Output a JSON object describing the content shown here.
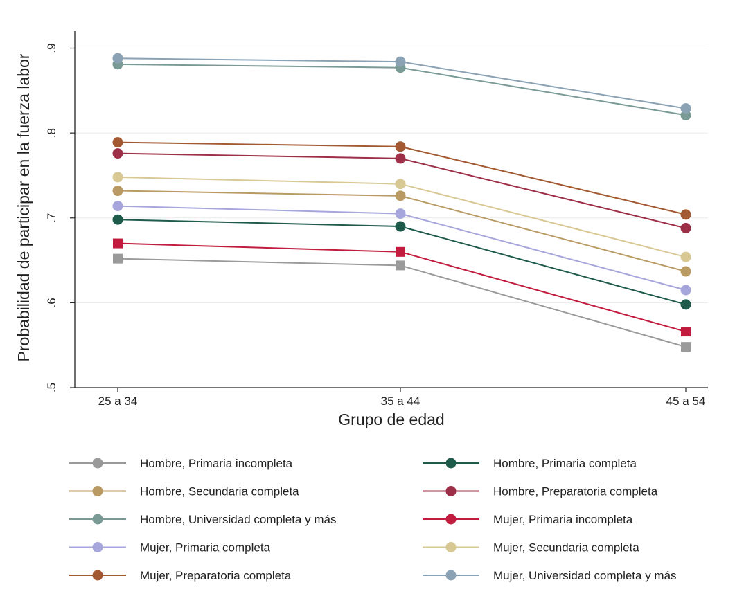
{
  "chart_data": {
    "type": "line",
    "title": "",
    "xlabel": "Grupo de edad",
    "ylabel": "Probabilidad de participar en la fuerza labor",
    "categories": [
      "25 a 34",
      "35 a 44",
      "45 a 54"
    ],
    "ylim": [
      0.5,
      0.92
    ],
    "yticks": [
      0.5,
      0.6,
      0.7,
      0.8,
      0.9
    ],
    "ytick_labels": [
      ".5",
      ".6",
      ".7",
      ".8",
      ".9"
    ],
    "grid": true,
    "legend_position": "bottom",
    "series": [
      {
        "name": "Hombre, Primaria incompleta",
        "values": [
          0.652,
          0.644,
          0.548
        ],
        "color": "#9a9a9a",
        "marker": "square"
      },
      {
        "name": "Hombre, Primaria completa",
        "values": [
          0.698,
          0.69,
          0.598
        ],
        "color": "#1f5b4b",
        "marker": "circle"
      },
      {
        "name": "Hombre, Secundaria completa",
        "values": [
          0.732,
          0.726,
          0.637
        ],
        "color": "#b89a62",
        "marker": "circle"
      },
      {
        "name": "Hombre, Preparatoria completa",
        "values": [
          0.776,
          0.77,
          0.688
        ],
        "color": "#9e2f48",
        "marker": "circle"
      },
      {
        "name": "Hombre, Universidad completa y más",
        "values": [
          0.881,
          0.877,
          0.821
        ],
        "color": "#7a9a95",
        "marker": "circle"
      },
      {
        "name": "Mujer, Primaria incompleta",
        "values": [
          0.67,
          0.66,
          0.566
        ],
        "color": "#c11c3d",
        "marker": "square"
      },
      {
        "name": "Mujer, Primaria completa",
        "values": [
          0.714,
          0.705,
          0.615
        ],
        "color": "#a6a6dc",
        "marker": "circle"
      },
      {
        "name": "Mujer, Secundaria completa",
        "values": [
          0.748,
          0.74,
          0.654
        ],
        "color": "#d8c894",
        "marker": "circle"
      },
      {
        "name": "Mujer, Preparatoria completa",
        "values": [
          0.789,
          0.784,
          0.704
        ],
        "color": "#a35a32",
        "marker": "circle"
      },
      {
        "name": "Mujer, Universidad completa y más",
        "values": [
          0.888,
          0.884,
          0.829
        ],
        "color": "#8aa2b3",
        "marker": "circle"
      }
    ]
  }
}
